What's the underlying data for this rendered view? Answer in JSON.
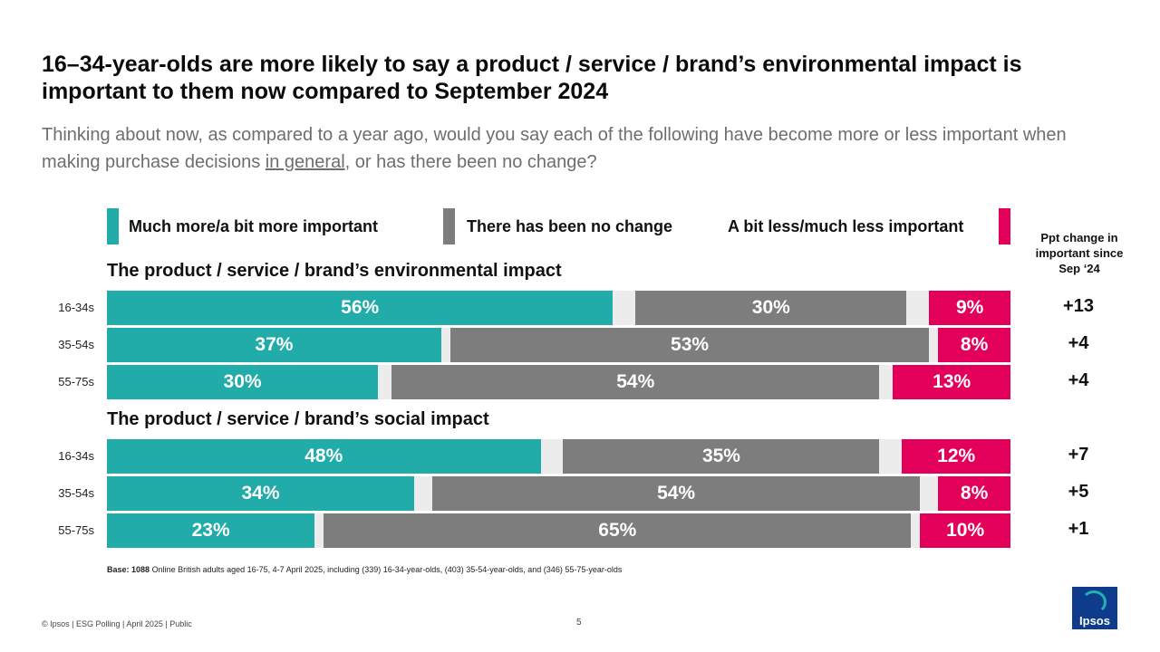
{
  "title": "16–34-year-olds are more likely to say a product / service / brand’s environmental impact is important to them now compared to September 2024",
  "subtitle": {
    "before": "Thinking about now, as compared to a year ago, would you say each of the following have become more or less important when making purchase decisions ",
    "underlined": "in general",
    "after": ", or has there been no change?"
  },
  "legend": {
    "more": "Much more/a bit more important",
    "none": "There has been no change",
    "less": "A bit less/much less important"
  },
  "ppt_header": "Ppt change in important since Sep ‘24",
  "colors": {
    "more": "#21aca9",
    "none": "#7d7d7d",
    "less": "#e2005a",
    "track": "#ececec",
    "logo": "#0e3b8c"
  },
  "chart_data": {
    "type": "bar",
    "stacked": true,
    "orientation": "horizontal",
    "scale_max": 100,
    "series_names": [
      "Much more/a bit more important",
      "There has been no change",
      "A bit less/much less important"
    ],
    "groups": [
      {
        "title": "The product / service / brand’s environmental impact",
        "rows": [
          {
            "label": "16-34s",
            "more": 56,
            "none": 30,
            "less": 9,
            "more_text": "56%",
            "none_text": "30%",
            "less_text": "9%",
            "change": "+13"
          },
          {
            "label": "35-54s",
            "more": 37,
            "none": 53,
            "less": 8,
            "more_text": "37%",
            "none_text": "53%",
            "less_text": "8%",
            "change": "+4"
          },
          {
            "label": "55-75s",
            "more": 30,
            "none": 54,
            "less": 13,
            "more_text": "30%",
            "none_text": "54%",
            "less_text": "13%",
            "change": "+4"
          }
        ]
      },
      {
        "title": "The product / service / brand’s social impact",
        "rows": [
          {
            "label": "16-34s",
            "more": 48,
            "none": 35,
            "less": 12,
            "more_text": "48%",
            "none_text": "35%",
            "less_text": "12%",
            "change": "+7"
          },
          {
            "label": "35-54s",
            "more": 34,
            "none": 54,
            "less": 8,
            "more_text": "34%",
            "none_text": "54%",
            "less_text": "8%",
            "change": "+5"
          },
          {
            "label": "55-75s",
            "more": 23,
            "none": 65,
            "less": 10,
            "more_text": "23%",
            "none_text": "65%",
            "less_text": "10%",
            "change": "+1"
          }
        ]
      }
    ]
  },
  "base": {
    "label": "Base:",
    "count": "1088",
    "text": " Online British adults aged 16-75, 4-7 April 2025, including (339) 16-34-year-olds, (403) 35-54-year-olds, and (346) 55-75-year-olds"
  },
  "footer": "© Ipsos | ESG Polling | April 2025 | Public",
  "page_number": "5",
  "logo_text": "Ipsos"
}
